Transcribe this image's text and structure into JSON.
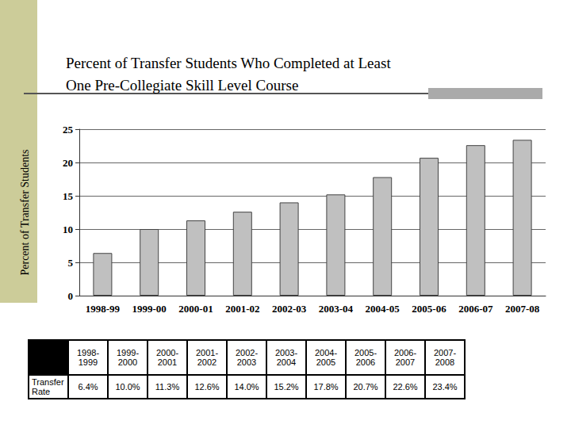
{
  "chart_data": {
    "type": "bar",
    "title": "Percent of Transfer Students Who Completed at Least One Pre-Collegiate Skill Level Course",
    "ylabel": "Percent of Transfer Students",
    "categories": [
      "1998-99",
      "1999-00",
      "2000-01",
      "2001-02",
      "2002-03",
      "2003-04",
      "2004-05",
      "2005-06",
      "2006-07",
      "2007-08"
    ],
    "values": [
      6.4,
      10.0,
      11.3,
      12.6,
      14.0,
      15.2,
      17.8,
      20.7,
      22.6,
      23.4
    ],
    "color": "#c0c0c0",
    "ylim": [
      0,
      25
    ],
    "yticks": [
      0,
      5,
      10,
      15,
      20,
      25
    ],
    "grid": true
  },
  "table": {
    "header": [
      "1998-1999",
      "1999-2000",
      "2000-2001",
      "2001-2002",
      "2002-2003",
      "2003-2004",
      "2004-2005",
      "2005-2006",
      "2006-2007",
      "2007-2008"
    ],
    "rows": [
      [
        "Transfer Rate",
        "6.4%",
        "10.0%",
        "11.3%",
        "12.6%",
        "14.0%",
        "15.2%",
        "17.8%",
        "20.7%",
        "22.6%",
        "23.4%"
      ]
    ]
  }
}
